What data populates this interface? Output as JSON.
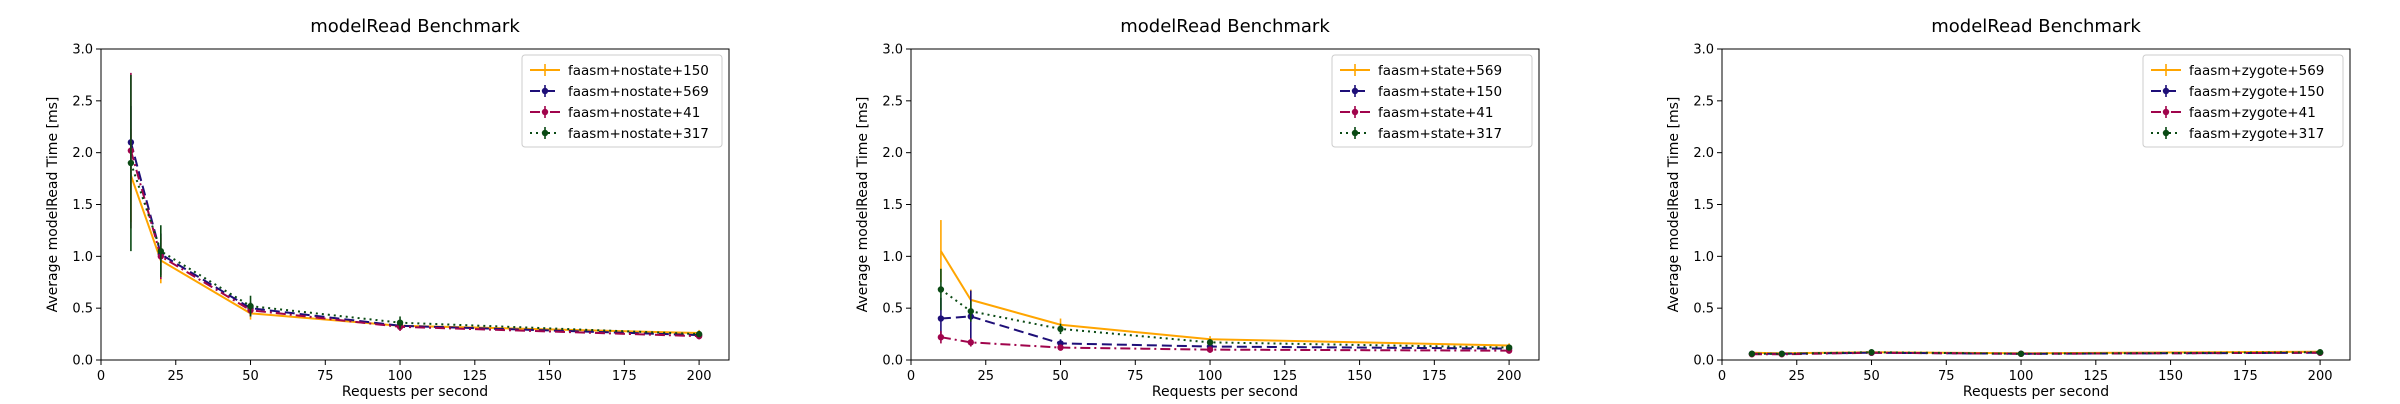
{
  "chart_data": [
    {
      "type": "line",
      "title": "modelRead Benchmark",
      "xlabel": "Requests per second",
      "ylabel": "Average modelRead Time [ms]",
      "xlim": [
        0,
        210
      ],
      "ylim": [
        0,
        3.0
      ],
      "xticks": [
        0,
        25,
        50,
        75,
        100,
        125,
        150,
        175,
        200
      ],
      "yticks": [
        0.0,
        0.5,
        1.0,
        1.5,
        2.0,
        2.5,
        3.0
      ],
      "xtick_labels": [
        "0",
        "25",
        "50",
        "75",
        "100",
        "125",
        "150",
        "175",
        "200"
      ],
      "ytick_labels": [
        "0.0",
        "0.5",
        "1.0",
        "1.5",
        "2.0",
        "2.5",
        "3.0"
      ],
      "legend_position": "top-right",
      "grid": false,
      "series": [
        {
          "name": "faasm+nostate+150",
          "color": "#FFA500",
          "dash": "solid",
          "marker": "none",
          "x": [
            10,
            20,
            50,
            100,
            200
          ],
          "y": [
            1.78,
            0.96,
            0.45,
            0.33,
            0.26
          ],
          "err": [
            0.45,
            0.22,
            0.06,
            0.04,
            0.03
          ]
        },
        {
          "name": "faasm+nostate+569",
          "color": "#1E0F78",
          "dash": "dashed",
          "marker": "circle",
          "x": [
            10,
            20,
            50,
            100,
            200
          ],
          "y": [
            2.1,
            1.02,
            0.5,
            0.33,
            0.24
          ],
          "err": [
            0.35,
            0.2,
            0.06,
            0.04,
            0.03
          ]
        },
        {
          "name": "faasm+nostate+41",
          "color": "#A0044C",
          "dash": "dashdot",
          "marker": "circle",
          "x": [
            10,
            20,
            50,
            100,
            200
          ],
          "y": [
            2.02,
            1.0,
            0.48,
            0.32,
            0.23
          ],
          "err": [
            0.75,
            0.22,
            0.06,
            0.04,
            0.03
          ]
        },
        {
          "name": "faasm+nostate+317",
          "color": "#0A4A14",
          "dash": "dotted",
          "marker": "circle",
          "x": [
            10,
            20,
            50,
            100,
            200
          ],
          "y": [
            1.9,
            1.05,
            0.52,
            0.36,
            0.25
          ],
          "err": [
            0.85,
            0.25,
            0.1,
            0.06,
            0.03
          ]
        }
      ]
    },
    {
      "type": "line",
      "title": "modelRead Benchmark",
      "xlabel": "Requests per second",
      "ylabel": "Average modelRead Time [ms]",
      "xlim": [
        0,
        210
      ],
      "ylim": [
        0,
        3.0
      ],
      "xticks": [
        0,
        25,
        50,
        75,
        100,
        125,
        150,
        175,
        200
      ],
      "yticks": [
        0.0,
        0.5,
        1.0,
        1.5,
        2.0,
        2.5,
        3.0
      ],
      "xtick_labels": [
        "0",
        "25",
        "50",
        "75",
        "100",
        "125",
        "150",
        "175",
        "200"
      ],
      "ytick_labels": [
        "0.0",
        "0.5",
        "1.0",
        "1.5",
        "2.0",
        "2.5",
        "3.0"
      ],
      "legend_position": "top-right",
      "grid": false,
      "series": [
        {
          "name": "faasm+state+569",
          "color": "#FFA500",
          "dash": "solid",
          "marker": "none",
          "x": [
            10,
            20,
            50,
            100,
            200
          ],
          "y": [
            1.05,
            0.58,
            0.34,
            0.2,
            0.14
          ],
          "err": [
            0.3,
            0.1,
            0.06,
            0.03,
            0.02
          ]
        },
        {
          "name": "faasm+state+150",
          "color": "#1E0F78",
          "dash": "dashed",
          "marker": "circle",
          "x": [
            10,
            20,
            50,
            100,
            200
          ],
          "y": [
            0.4,
            0.42,
            0.16,
            0.13,
            0.11
          ],
          "err": [
            0.2,
            0.25,
            0.04,
            0.03,
            0.02
          ]
        },
        {
          "name": "faasm+state+41",
          "color": "#A0044C",
          "dash": "dashdot",
          "marker": "circle",
          "x": [
            10,
            20,
            50,
            100,
            200
          ],
          "y": [
            0.22,
            0.17,
            0.12,
            0.1,
            0.09
          ],
          "err": [
            0.06,
            0.04,
            0.03,
            0.03,
            0.02
          ]
        },
        {
          "name": "faasm+state+317",
          "color": "#0A4A14",
          "dash": "dotted",
          "marker": "circle",
          "x": [
            10,
            20,
            50,
            100,
            200
          ],
          "y": [
            0.68,
            0.47,
            0.3,
            0.17,
            0.12
          ],
          "err": [
            0.2,
            0.1,
            0.05,
            0.03,
            0.02
          ]
        }
      ]
    },
    {
      "type": "line",
      "title": "modelRead Benchmark",
      "xlabel": "Requests per second",
      "ylabel": "Average modelRead Time [ms]",
      "xlim": [
        0,
        210
      ],
      "ylim": [
        0,
        3.0
      ],
      "xticks": [
        0,
        25,
        50,
        75,
        100,
        125,
        150,
        175,
        200
      ],
      "yticks": [
        0.0,
        0.5,
        1.0,
        1.5,
        2.0,
        2.5,
        3.0
      ],
      "xtick_labels": [
        "0",
        "25",
        "50",
        "75",
        "100",
        "125",
        "150",
        "175",
        "200"
      ],
      "ytick_labels": [
        "0.0",
        "0.5",
        "1.0",
        "1.5",
        "2.0",
        "2.5",
        "3.0"
      ],
      "legend_position": "top-right",
      "grid": false,
      "series": [
        {
          "name": "faasm+zygote+569",
          "color": "#FFA500",
          "dash": "solid",
          "marker": "none",
          "x": [
            10,
            20,
            50,
            100,
            200
          ],
          "y": [
            0.07,
            0.065,
            0.075,
            0.065,
            0.08
          ],
          "err": [
            0.02,
            0.01,
            0.01,
            0.01,
            0.02
          ]
        },
        {
          "name": "faasm+zygote+150",
          "color": "#1E0F78",
          "dash": "dashed",
          "marker": "circle",
          "x": [
            10,
            20,
            50,
            100,
            200
          ],
          "y": [
            0.06,
            0.06,
            0.07,
            0.06,
            0.07
          ],
          "err": [
            0.02,
            0.01,
            0.01,
            0.01,
            0.02
          ]
        },
        {
          "name": "faasm+zygote+41",
          "color": "#A0044C",
          "dash": "dashdot",
          "marker": "circle",
          "x": [
            10,
            20,
            50,
            100,
            200
          ],
          "y": [
            0.055,
            0.055,
            0.07,
            0.06,
            0.07
          ],
          "err": [
            0.02,
            0.01,
            0.01,
            0.01,
            0.02
          ]
        },
        {
          "name": "faasm+zygote+317",
          "color": "#0A4A14",
          "dash": "dotted",
          "marker": "circle",
          "x": [
            10,
            20,
            50,
            100,
            200
          ],
          "y": [
            0.06,
            0.06,
            0.075,
            0.06,
            0.075
          ],
          "err": [
            0.02,
            0.01,
            0.01,
            0.01,
            0.02
          ]
        }
      ]
    }
  ]
}
